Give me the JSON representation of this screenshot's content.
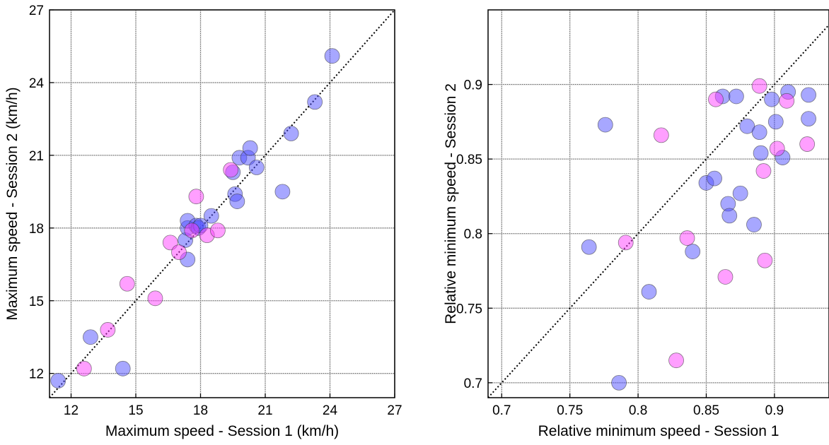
{
  "chart_data": [
    {
      "type": "scatter",
      "title": "",
      "xlabel": "Maximum speed - Session 1 (km/h)",
      "ylabel": "Maximum speed - Session 2 (km/h)",
      "xlim": [
        11,
        27
      ],
      "ylim": [
        11,
        27
      ],
      "xticks": [
        12,
        15,
        18,
        21,
        24,
        27
      ],
      "yticks": [
        12,
        15,
        18,
        21,
        24,
        27
      ],
      "xtick_labels": [
        "12",
        "15",
        "18",
        "21",
        "24",
        "27"
      ],
      "ytick_labels": [
        "12",
        "15",
        "18",
        "21",
        "24",
        "27"
      ],
      "grid": true,
      "identity_line": true,
      "series": [
        {
          "color": "#5050ff",
          "points": [
            [
              11.4,
              11.7
            ],
            [
              12.9,
              13.5
            ],
            [
              14.4,
              12.2
            ],
            [
              17.4,
              16.7
            ],
            [
              17.3,
              17.5
            ],
            [
              17.4,
              18.0
            ],
            [
              17.4,
              18.3
            ],
            [
              17.8,
              18.1
            ],
            [
              17.9,
              18.0
            ],
            [
              18.0,
              18.1
            ],
            [
              18.5,
              18.5
            ],
            [
              19.5,
              20.3
            ],
            [
              19.6,
              19.4
            ],
            [
              19.7,
              19.1
            ],
            [
              19.8,
              20.9
            ],
            [
              20.2,
              20.9
            ],
            [
              20.3,
              21.3
            ],
            [
              20.6,
              20.5
            ],
            [
              21.8,
              19.5
            ],
            [
              22.2,
              21.9
            ],
            [
              23.3,
              23.2
            ],
            [
              24.1,
              25.1
            ]
          ]
        },
        {
          "color": "#ff40ff",
          "points": [
            [
              12.6,
              12.2
            ],
            [
              13.7,
              13.8
            ],
            [
              14.6,
              15.7
            ],
            [
              15.9,
              15.1
            ],
            [
              16.6,
              17.4
            ],
            [
              17.0,
              17.0
            ],
            [
              17.6,
              17.9
            ],
            [
              17.8,
              19.3
            ],
            [
              18.3,
              17.7
            ],
            [
              18.8,
              17.9
            ],
            [
              19.4,
              20.4
            ]
          ]
        }
      ]
    },
    {
      "type": "scatter",
      "title": "",
      "xlabel": "Relative minimum speed - Session 1",
      "ylabel": "Relative minimum speed - Session 2",
      "xlim": [
        0.69,
        0.94
      ],
      "ylim": [
        0.69,
        0.95
      ],
      "xticks": [
        0.7,
        0.75,
        0.8,
        0.85,
        0.9
      ],
      "yticks": [
        0.7,
        0.75,
        0.8,
        0.85,
        0.9
      ],
      "xtick_labels": [
        "0.7",
        "0.75",
        "0.8",
        "0.85",
        "0.9"
      ],
      "ytick_labels": [
        "0.7",
        "0.75",
        "0.8",
        "0.85",
        "0.9"
      ],
      "grid": true,
      "identity_line": true,
      "series": [
        {
          "color": "#5050ff",
          "points": [
            [
              0.764,
              0.791
            ],
            [
              0.776,
              0.873
            ],
            [
              0.786,
              0.7
            ],
            [
              0.808,
              0.761
            ],
            [
              0.84,
              0.788
            ],
            [
              0.85,
              0.834
            ],
            [
              0.856,
              0.837
            ],
            [
              0.862,
              0.892
            ],
            [
              0.866,
              0.82
            ],
            [
              0.867,
              0.812
            ],
            [
              0.872,
              0.892
            ],
            [
              0.875,
              0.827
            ],
            [
              0.88,
              0.872
            ],
            [
              0.885,
              0.806
            ],
            [
              0.889,
              0.868
            ],
            [
              0.89,
              0.854
            ],
            [
              0.898,
              0.89
            ],
            [
              0.901,
              0.875
            ],
            [
              0.906,
              0.851
            ],
            [
              0.91,
              0.895
            ],
            [
              0.925,
              0.893
            ],
            [
              0.925,
              0.877
            ]
          ]
        },
        {
          "color": "#ff40ff",
          "points": [
            [
              0.791,
              0.794
            ],
            [
              0.817,
              0.866
            ],
            [
              0.828,
              0.715
            ],
            [
              0.836,
              0.797
            ],
            [
              0.857,
              0.89
            ],
            [
              0.864,
              0.771
            ],
            [
              0.889,
              0.899
            ],
            [
              0.892,
              0.842
            ],
            [
              0.893,
              0.782
            ],
            [
              0.902,
              0.857
            ],
            [
              0.909,
              0.889
            ],
            [
              0.924,
              0.86
            ]
          ]
        }
      ]
    }
  ]
}
